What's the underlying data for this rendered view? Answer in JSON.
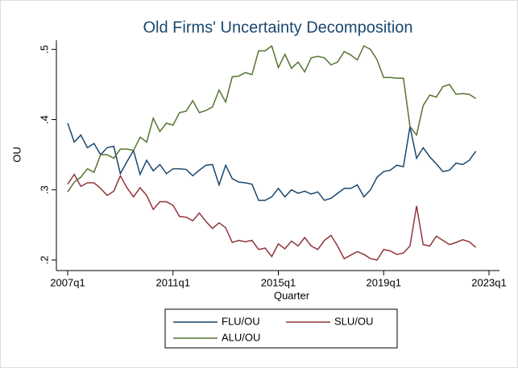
{
  "chart_data": {
    "type": "line",
    "title": "Old Firms' Uncertainty Decomposition",
    "x_label": "Quarter",
    "y_label": "OU",
    "categories": [
      "2007q1",
      null,
      null,
      null,
      null,
      null,
      null,
      null,
      null,
      null,
      null,
      null,
      null,
      null,
      null,
      null,
      "2011q1",
      null,
      null,
      null,
      null,
      null,
      null,
      null,
      null,
      null,
      null,
      null,
      null,
      null,
      null,
      null,
      "2015q1",
      null,
      null,
      null,
      null,
      null,
      null,
      null,
      null,
      null,
      null,
      null,
      null,
      null,
      null,
      null,
      "2019q1",
      null,
      null,
      null,
      null,
      null,
      null,
      null,
      null,
      null,
      null,
      null,
      null,
      null,
      null,
      null,
      "2023q1"
    ],
    "series": [
      {
        "name": "FLU/OU",
        "color": "#1a476f",
        "values": [
          0.395,
          0.368,
          0.378,
          0.36,
          0.366,
          0.35,
          0.36,
          0.362,
          0.323,
          0.34,
          0.356,
          0.322,
          0.342,
          0.327,
          0.336,
          0.323,
          0.33,
          0.33,
          0.329,
          0.32,
          0.328,
          0.335,
          0.336,
          0.307,
          0.335,
          0.316,
          0.311,
          0.31,
          0.308,
          0.285,
          0.285,
          0.29,
          0.302,
          0.29,
          0.3,
          0.295,
          0.298,
          0.294,
          0.297,
          0.285,
          0.288,
          0.295,
          0.302,
          0.302,
          0.307,
          0.29,
          0.3,
          0.318,
          0.326,
          0.328,
          0.335,
          0.333,
          0.39,
          0.345,
          0.36,
          0.347,
          0.337,
          0.326,
          0.328,
          0.338,
          0.336,
          0.342,
          0.355,
          null,
          null
        ]
      },
      {
        "name": "SLU/OU",
        "color": "#90353b",
        "values": [
          0.308,
          0.322,
          0.305,
          0.31,
          0.31,
          0.302,
          0.292,
          0.298,
          0.32,
          0.303,
          0.29,
          0.303,
          0.292,
          0.272,
          0.283,
          0.283,
          0.278,
          0.262,
          0.261,
          0.256,
          0.267,
          0.255,
          0.245,
          0.253,
          0.246,
          0.225,
          0.228,
          0.226,
          0.228,
          0.215,
          0.217,
          0.205,
          0.223,
          0.216,
          0.227,
          0.22,
          0.232,
          0.22,
          0.215,
          0.228,
          0.235,
          0.22,
          0.202,
          0.207,
          0.212,
          0.208,
          0.202,
          0.2,
          0.215,
          0.213,
          0.208,
          0.21,
          0.22,
          0.277,
          0.222,
          0.22,
          0.234,
          0.228,
          0.222,
          0.225,
          0.229,
          0.226,
          0.218,
          null,
          null
        ]
      },
      {
        "name": "ALU/OU",
        "color": "#55752f",
        "values": [
          0.297,
          0.311,
          0.318,
          0.33,
          0.325,
          0.35,
          0.35,
          0.345,
          0.358,
          0.358,
          0.356,
          0.375,
          0.368,
          0.402,
          0.383,
          0.395,
          0.392,
          0.41,
          0.412,
          0.427,
          0.41,
          0.413,
          0.418,
          0.442,
          0.425,
          0.461,
          0.462,
          0.467,
          0.464,
          0.498,
          0.498,
          0.505,
          0.474,
          0.493,
          0.473,
          0.482,
          0.468,
          0.488,
          0.49,
          0.488,
          0.478,
          0.482,
          0.497,
          0.492,
          0.485,
          0.505,
          0.5,
          0.485,
          0.46,
          0.46,
          0.459,
          0.459,
          0.39,
          0.378,
          0.42,
          0.435,
          0.432,
          0.447,
          0.45,
          0.436,
          0.437,
          0.436,
          0.43,
          null,
          null
        ]
      }
    ],
    "ylim": [
      0.185,
      0.513
    ],
    "yticks": [
      {
        "value": 0.2,
        "label": ".2"
      },
      {
        "value": 0.3,
        "label": ".3"
      },
      {
        "value": 0.4,
        "label": ".4"
      },
      {
        "value": 0.5,
        "label": ".5"
      }
    ],
    "grid": false,
    "legend": "bottom"
  }
}
